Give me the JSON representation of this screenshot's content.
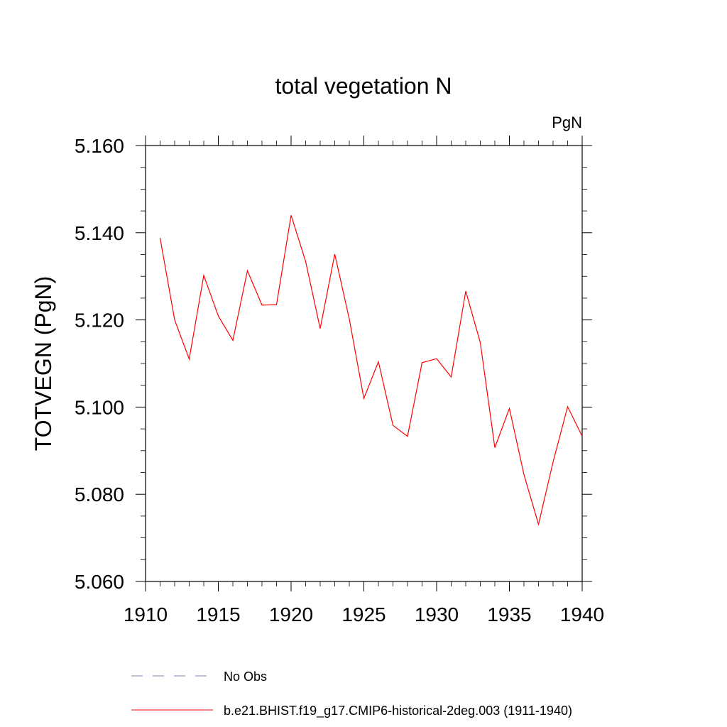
{
  "chart_data": {
    "type": "line",
    "title": "total vegetation N",
    "units_label": "PgN",
    "xlabel": "",
    "ylabel": "TOTVEGN  (PgN)",
    "xlim": [
      1910,
      1940
    ],
    "ylim": [
      5.06,
      5.16
    ],
    "x_ticks": [
      "1910",
      "1915",
      "1920",
      "1925",
      "1930",
      "1935",
      "1940"
    ],
    "y_ticks": [
      "5.060",
      "5.080",
      "5.100",
      "5.120",
      "5.140",
      "5.160"
    ],
    "x": [
      1911,
      1912,
      1913,
      1914,
      1915,
      1916,
      1917,
      1918,
      1919,
      1920,
      1921,
      1922,
      1923,
      1924,
      1925,
      1926,
      1927,
      1928,
      1929,
      1930,
      1931,
      1932,
      1933,
      1934,
      1935,
      1936,
      1937,
      1938,
      1939,
      1940
    ],
    "series": [
      {
        "name": "b.e21.BHIST.f19_g17.CMIP6-historical-2deg.003 (1911-1940)",
        "color": "#ff0000",
        "values": [
          5.1388,
          5.12,
          5.111,
          5.1302,
          5.1209,
          5.1153,
          5.1313,
          5.1234,
          5.1235,
          5.144,
          5.1334,
          5.118,
          5.1351,
          5.1202,
          5.102,
          5.1104,
          5.0958,
          5.0933,
          5.1102,
          5.1111,
          5.1069,
          5.1266,
          5.1148,
          5.0907,
          5.0997,
          5.0845,
          5.0731,
          5.0874,
          5.1001,
          5.0933
        ]
      }
    ],
    "legend": [
      {
        "label": "No Obs",
        "style": "dashed",
        "color": "#7f7fbf"
      },
      {
        "label": "b.e21.BHIST.f19_g17.CMIP6-historical-2deg.003 (1911-1940)",
        "style": "solid",
        "color": "#ff0000"
      }
    ],
    "legend_position": "bottom",
    "grid": false
  }
}
